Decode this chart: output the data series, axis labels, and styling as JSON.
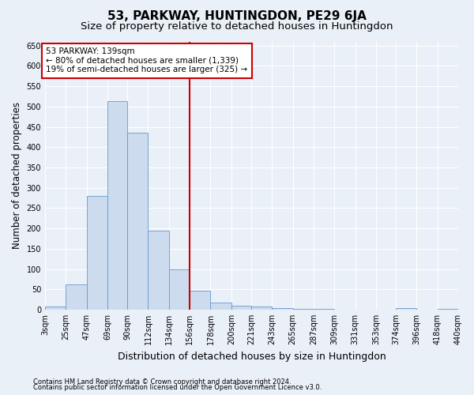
{
  "title": "53, PARKWAY, HUNTINGDON, PE29 6JA",
  "subtitle": "Size of property relative to detached houses in Huntingdon",
  "xlabel": "Distribution of detached houses by size in Huntingdon",
  "ylabel": "Number of detached properties",
  "bar_values": [
    8,
    63,
    280,
    513,
    435,
    195,
    100,
    47,
    17,
    10,
    8,
    4,
    2,
    1,
    0,
    0,
    0,
    4,
    0,
    2
  ],
  "categories": [
    "3sqm",
    "25sqm",
    "47sqm",
    "69sqm",
    "90sqm",
    "112sqm",
    "134sqm",
    "156sqm",
    "178sqm",
    "200sqm",
    "221sqm",
    "243sqm",
    "265sqm",
    "287sqm",
    "309sqm",
    "331sqm",
    "353sqm",
    "374sqm",
    "396sqm",
    "418sqm",
    "440sqm"
  ],
  "bin_starts": [
    3,
    25,
    47,
    69,
    90,
    112,
    134,
    156,
    178,
    200,
    221,
    243,
    265,
    287,
    309,
    331,
    353,
    374,
    396,
    418,
    440
  ],
  "bar_color": "#ccdcee",
  "bar_edge_color": "#6699cc",
  "vline_x": 156,
  "vline_color": "#cc0000",
  "annotation_line1": "53 PARKWAY: 139sqm",
  "annotation_line2": "← 80% of detached houses are smaller (1,339)",
  "annotation_line3": "19% of semi-detached houses are larger (325) →",
  "annotation_box_color": "#ffffff",
  "annotation_box_edge_color": "#cc0000",
  "ylim": [
    0,
    660
  ],
  "yticks": [
    0,
    50,
    100,
    150,
    200,
    250,
    300,
    350,
    400,
    450,
    500,
    550,
    600,
    650
  ],
  "footnote1": "Contains HM Land Registry data © Crown copyright and database right 2024.",
  "footnote2": "Contains public sector information licensed under the Open Government Licence v3.0.",
  "bg_color": "#eaf0f8",
  "plot_bg_color": "#eaf0f8",
  "grid_color": "#ffffff",
  "title_fontsize": 11,
  "subtitle_fontsize": 9.5,
  "ylabel_fontsize": 8.5,
  "xlabel_fontsize": 9,
  "tick_fontsize": 7,
  "annotation_fontsize": 7.5,
  "footnote_fontsize": 6
}
